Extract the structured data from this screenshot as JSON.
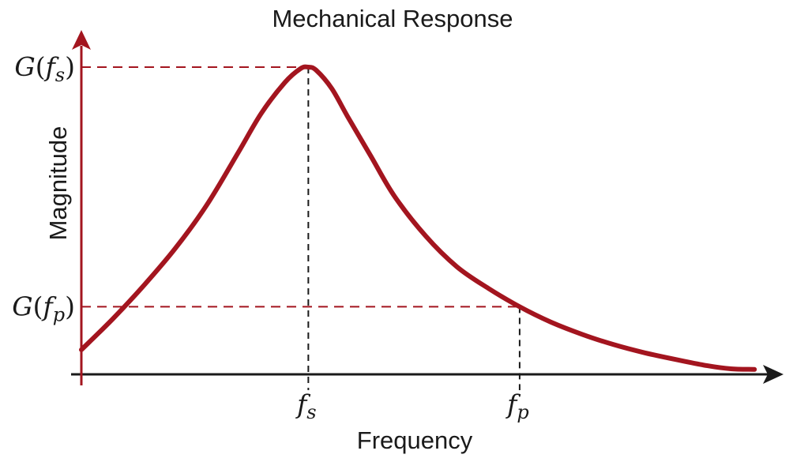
{
  "chart_data": {
    "type": "line",
    "title": "Mechanical Response",
    "xlabel": "Frequency",
    "ylabel": "Magnitude",
    "grid": false,
    "legend": "none",
    "colors": {
      "curve": "#a3151f",
      "y_axis": "#a3151f",
      "x_axis": "#1a1a1a",
      "ref_h": "#a3151f",
      "ref_v": "#1a1a1a"
    },
    "x_ticks": [
      {
        "x": 2.9,
        "base": "f",
        "sub": "s"
      },
      {
        "x": 5.6,
        "base": "f",
        "sub": "p"
      }
    ],
    "y_ticks": [
      {
        "y": 1.0,
        "fn": "G",
        "base": "f",
        "sub": "s"
      },
      {
        "y": 0.22,
        "fn": "G",
        "base": "f",
        "sub": "p"
      }
    ],
    "xlim": [
      0,
      8.8
    ],
    "ylim": [
      0,
      1.0
    ],
    "series": [
      {
        "x": [
          0,
          0.4,
          0.8,
          1.2,
          1.6,
          2.0,
          2.3,
          2.6,
          2.8,
          2.9,
          3.0,
          3.2,
          3.4,
          3.7,
          4.0,
          4.4,
          4.8,
          5.2,
          5.6,
          6.0,
          6.4,
          6.8,
          7.2,
          7.6,
          8.0,
          8.3,
          8.6
        ],
        "y": [
          0.08,
          0.18,
          0.29,
          0.41,
          0.55,
          0.72,
          0.85,
          0.95,
          0.995,
          1.0,
          0.99,
          0.93,
          0.84,
          0.71,
          0.58,
          0.45,
          0.35,
          0.28,
          0.22,
          0.17,
          0.13,
          0.097,
          0.07,
          0.048,
          0.028,
          0.018,
          0.016
        ]
      }
    ]
  }
}
